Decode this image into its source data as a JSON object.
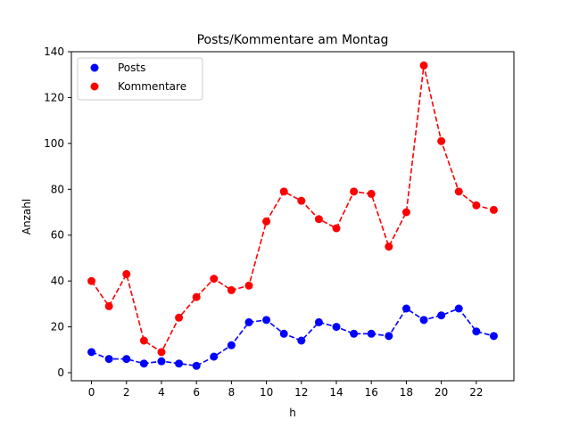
{
  "chart_data": {
    "type": "line",
    "title": "Posts/Kommentare am Montag",
    "xlabel": "h",
    "ylabel": "Anzahl",
    "x": [
      0,
      1,
      2,
      3,
      4,
      5,
      6,
      7,
      8,
      9,
      10,
      11,
      12,
      13,
      14,
      15,
      16,
      17,
      18,
      19,
      20,
      21,
      22,
      23
    ],
    "xlim": [
      -1.15,
      24.15
    ],
    "ylim": [
      -3.5,
      140
    ],
    "xticks": [
      0,
      2,
      4,
      6,
      8,
      10,
      12,
      14,
      16,
      18,
      20,
      22
    ],
    "yticks": [
      0,
      20,
      40,
      60,
      80,
      100,
      120,
      140
    ],
    "grid": false,
    "legend_position": "upper-left",
    "series": [
      {
        "name": "Posts",
        "color": "#0000ff",
        "line_style": "dashed",
        "marker": "circle",
        "values": [
          9,
          6,
          6,
          4,
          5,
          4,
          3,
          7,
          12,
          22,
          23,
          17,
          14,
          22,
          20,
          17,
          17,
          16,
          28,
          23,
          25,
          28,
          18,
          16
        ]
      },
      {
        "name": "Kommentare",
        "color": "#ff0000",
        "line_style": "dashed",
        "marker": "circle",
        "values": [
          40,
          29,
          43,
          14,
          9,
          24,
          33,
          41,
          36,
          38,
          66,
          79,
          75,
          67,
          63,
          79,
          78,
          55,
          70,
          134,
          101,
          79,
          73,
          71
        ]
      }
    ]
  }
}
